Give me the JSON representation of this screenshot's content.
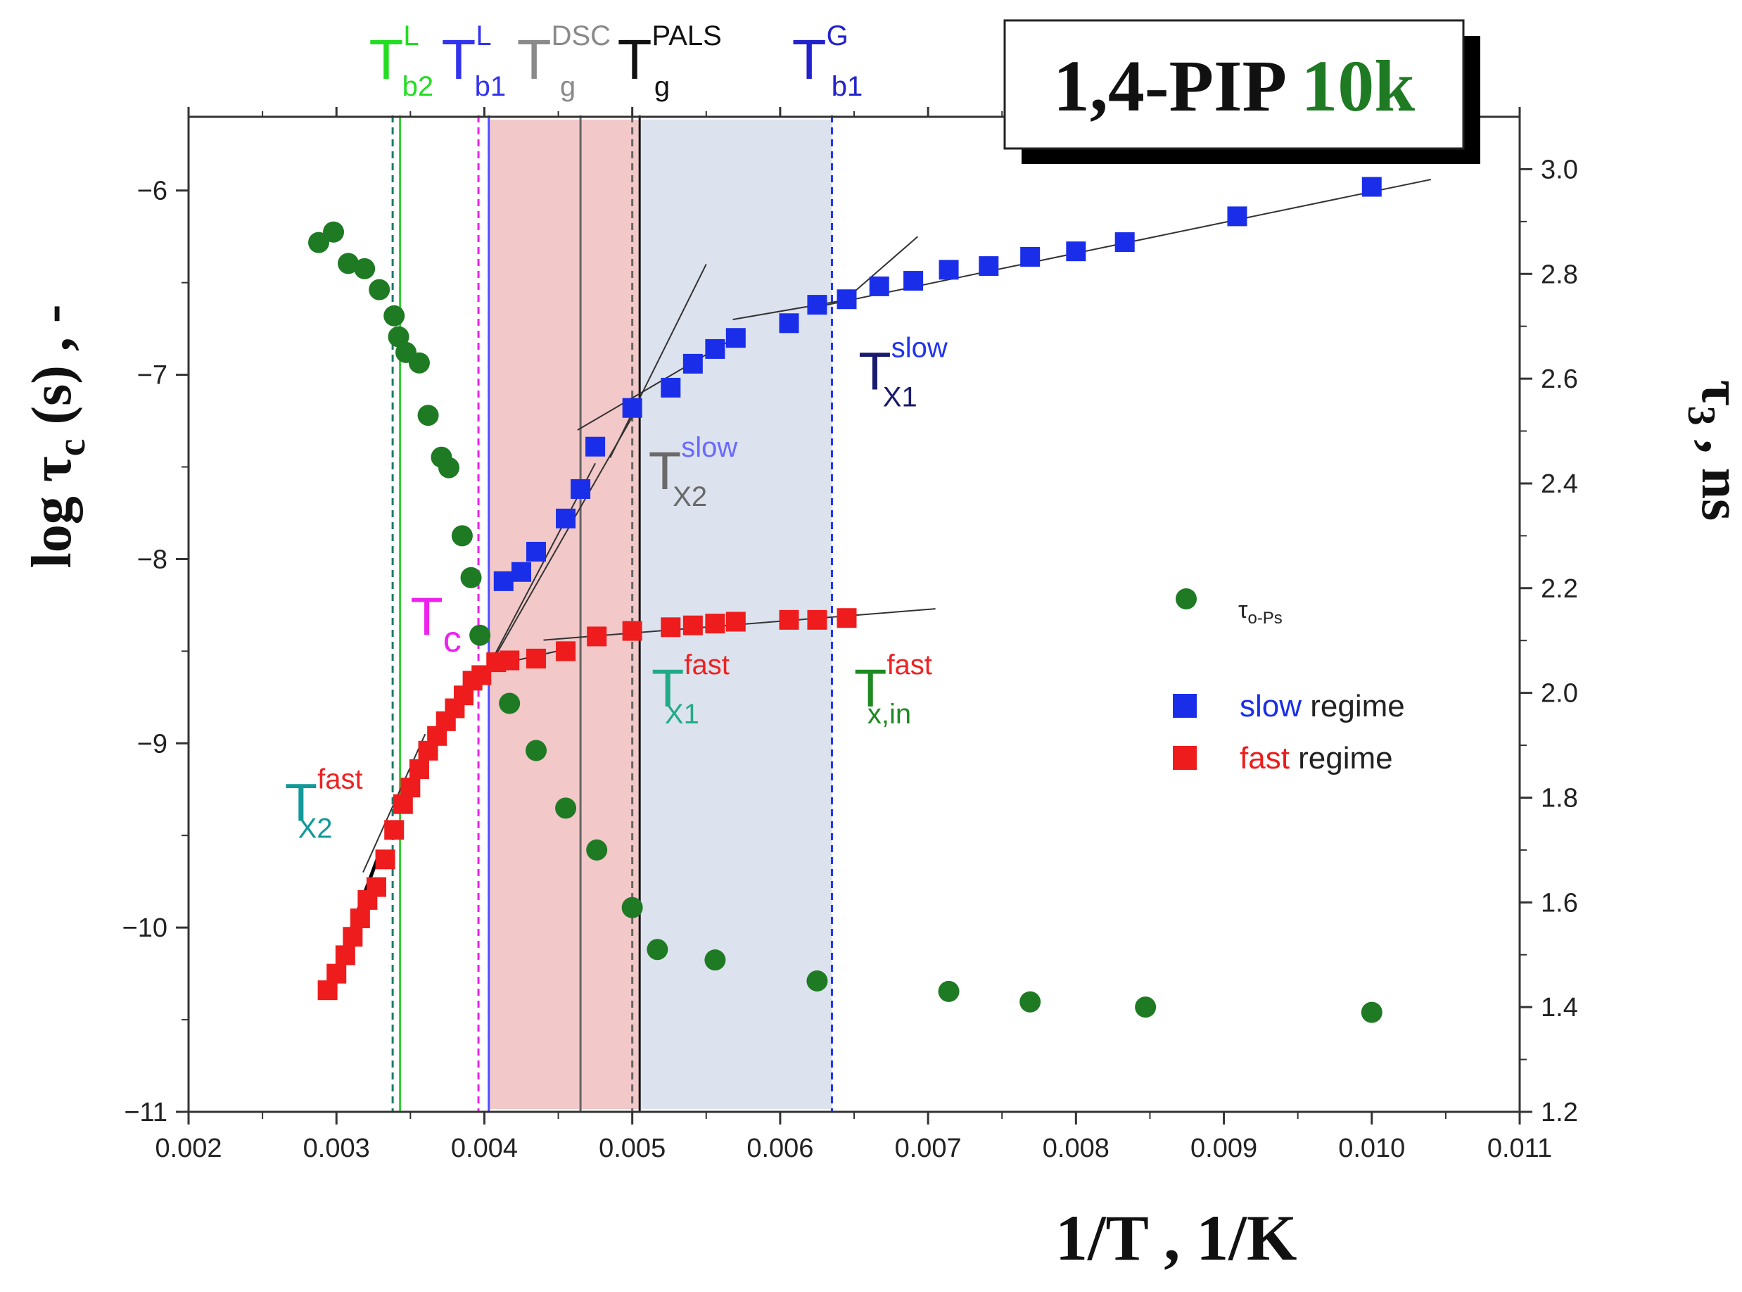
{
  "chart_data": {
    "type": "scatter",
    "title": "1,4-PIP",
    "title_suffix": "10k",
    "xlabel": "1/T , 1/K",
    "ylabel": "log τc (s) , -",
    "y2label": "τ3 , ns",
    "xlim": [
      0.002,
      0.011
    ],
    "ylim": [
      -11,
      -5.6
    ],
    "y2lim": [
      1.2,
      3.1
    ],
    "x_ticks": [
      "0.002",
      "0.003",
      "0.004",
      "0.005",
      "0.006",
      "0.007",
      "0.008",
      "0.009",
      "0.010",
      "0.011"
    ],
    "y_ticks": [
      "−11",
      "−10",
      "−9",
      "−8",
      "−7",
      "−6"
    ],
    "y2_ticks": [
      "1.2",
      "1.4",
      "1.6",
      "1.8",
      "2.0",
      "2.2",
      "2.4",
      "2.6",
      "2.8",
      "3.0"
    ],
    "series": [
      {
        "name": "slow regime",
        "name_colored": "slow",
        "name_rest": " regime",
        "axis": "left",
        "color": "#1a2eea",
        "marker": "square",
        "x": [
          0.00413,
          0.00425,
          0.00435,
          0.00455,
          0.00465,
          0.00475,
          0.005,
          0.00526,
          0.00541,
          0.00556,
          0.0057,
          0.00606,
          0.00625,
          0.00645,
          0.00667,
          0.0069,
          0.00714,
          0.00741,
          0.00769,
          0.008,
          0.00833,
          0.00909,
          0.01
        ],
        "y": [
          -8.12,
          -8.07,
          -7.96,
          -7.78,
          -7.62,
          -7.39,
          -7.18,
          -7.07,
          -6.94,
          -6.86,
          -6.8,
          -6.72,
          -6.62,
          -6.59,
          -6.52,
          -6.49,
          -6.43,
          -6.41,
          -6.36,
          -6.33,
          -6.28,
          -6.14,
          -5.98
        ]
      },
      {
        "name": "fast regime",
        "name_colored": "fast",
        "name_rest": " regime",
        "axis": "left",
        "color": "#ee1c1c",
        "marker": "square",
        "x": [
          0.00294,
          0.003,
          0.00306,
          0.00311,
          0.00316,
          0.00321,
          0.00327,
          0.00333,
          0.00339,
          0.00345,
          0.0035,
          0.00356,
          0.00362,
          0.00368,
          0.00374,
          0.0038,
          0.00386,
          0.00392,
          0.00398,
          0.00408,
          0.00417,
          0.00435,
          0.00455,
          0.00476,
          0.005,
          0.00526,
          0.00541,
          0.00556,
          0.0057,
          0.00606,
          0.00625,
          0.00645
        ],
        "y": [
          -10.34,
          -10.25,
          -10.15,
          -10.05,
          -9.95,
          -9.85,
          -9.78,
          -9.63,
          -9.47,
          -9.33,
          -9.24,
          -9.14,
          -9.04,
          -8.96,
          -8.88,
          -8.81,
          -8.74,
          -8.66,
          -8.63,
          -8.56,
          -8.55,
          -8.54,
          -8.5,
          -8.42,
          -8.39,
          -8.37,
          -8.36,
          -8.35,
          -8.34,
          -8.33,
          -8.33,
          -8.32
        ]
      },
      {
        "name": "τo-Ps",
        "name_main": "τ",
        "name_sub": "o-Ps",
        "axis": "right",
        "color": "#1e7a23",
        "marker": "circle",
        "x": [
          0.00288,
          0.00298,
          0.00308,
          0.00319,
          0.00329,
          0.00339,
          0.00342,
          0.00347,
          0.00356,
          0.00362,
          0.00371,
          0.00376,
          0.00385,
          0.00391,
          0.00397,
          0.00417,
          0.00435,
          0.00455,
          0.00476,
          0.005,
          0.00517,
          0.00556,
          0.00625,
          0.00714,
          0.00769,
          0.00847,
          0.01
        ],
        "y": [
          2.86,
          2.88,
          2.82,
          2.81,
          2.77,
          2.72,
          2.68,
          2.65,
          2.63,
          2.53,
          2.45,
          2.43,
          2.3,
          2.22,
          2.11,
          1.98,
          1.89,
          1.78,
          1.7,
          1.59,
          1.51,
          1.49,
          1.45,
          1.43,
          1.41,
          1.4,
          1.39
        ]
      }
    ],
    "fit_lines": [
      {
        "x": [
          0.00294,
          0.00328
        ],
        "y": [
          -10.35,
          -9.62
        ]
      },
      {
        "x": [
          0.00318,
          0.0036
        ],
        "y": [
          -9.7,
          -8.95
        ]
      },
      {
        "x": [
          0.00345,
          0.00398
        ],
        "y": [
          -9.3,
          -8.6
        ]
      },
      {
        "x": [
          0.00405,
          0.00475
        ],
        "y": [
          -8.55,
          -7.48
        ]
      },
      {
        "x": [
          0.00405,
          0.00502
        ],
        "y": [
          -8.56,
          -7.2
        ]
      },
      {
        "x": [
          0.00463,
          0.00565
        ],
        "y": [
          -7.3,
          -6.82
        ]
      },
      {
        "x": [
          0.00485,
          0.0055
        ],
        "y": [
          -7.45,
          -6.4
        ]
      },
      {
        "x": [
          0.00568,
          0.0064
        ],
        "y": [
          -6.7,
          -6.6
        ]
      },
      {
        "x": [
          0.0064,
          0.00693
        ],
        "y": [
          -6.62,
          -6.25
        ]
      },
      {
        "x": [
          0.0062,
          0.0104
        ],
        "y": [
          -6.64,
          -5.94
        ]
      },
      {
        "x": [
          0.00405,
          0.0046
        ],
        "y": [
          -8.58,
          -8.48
        ]
      },
      {
        "x": [
          0.0044,
          0.00705
        ],
        "y": [
          -8.44,
          -8.27
        ]
      }
    ],
    "vertical_lines": [
      {
        "name": "T_b2_L",
        "x": 0.00338,
        "color": "#1a7a6a",
        "style": "dashed"
      },
      {
        "name": "T_b2_L_solid",
        "x": 0.00343,
        "color": "#33cc33",
        "style": "solid"
      },
      {
        "name": "T_c",
        "x": 0.00396,
        "color": "#ee22ee",
        "style": "dashed"
      },
      {
        "name": "T_b1_L",
        "x": 0.00403,
        "color": "#4d4dff",
        "style": "solid"
      },
      {
        "name": "T_X2_slow",
        "x": 0.00465,
        "color": "#666666",
        "style": "solid"
      },
      {
        "name": "T_g_DSC",
        "x": 0.005,
        "color": "#666666",
        "style": "dashed"
      },
      {
        "name": "T_g_PALS",
        "x": 0.00505,
        "color": "#111111",
        "style": "solid"
      },
      {
        "name": "T_b1_G",
        "x": 0.00635,
        "color": "#2233ff",
        "style": "dashed"
      }
    ],
    "shaded_regions": [
      {
        "x": [
          0.00403,
          0.00505
        ],
        "color": "#f2c8c8"
      },
      {
        "x": [
          0.00505,
          0.00635
        ],
        "color": "#dde3ee"
      }
    ],
    "top_labels": [
      {
        "main": "T",
        "sup": "L",
        "sub": "b2",
        "color": "#22dd22",
        "sup_color": "#22dd22",
        "sub_color": "#22dd22",
        "x": 0.00322
      },
      {
        "main": "T",
        "sup": "L",
        "sub": "b1",
        "color": "#3333ee",
        "sup_color": "#3333ee",
        "sub_color": "#3333ee",
        "x": 0.00371
      },
      {
        "main": "T",
        "sup": "DSC",
        "sub": "g",
        "color": "#8a8a8a",
        "sup_color": "#8a8a8a",
        "sub_color": "#8a8a8a",
        "x": 0.00422
      },
      {
        "main": "T",
        "sup": "PALS",
        "sub": "g",
        "color": "#111111",
        "sup_color": "#111111",
        "sub_color": "#111111",
        "x": 0.0049
      },
      {
        "main": "T",
        "sup": "G",
        "sub": "b1",
        "color": "#2222cc",
        "sup_color": "#2222cc",
        "sub_color": "#2222cc",
        "x": 0.00608
      }
    ],
    "annotations": [
      {
        "main": "T",
        "sup": "slow",
        "sub": "X1",
        "color": "#1a1a6e",
        "sup_color": "#2233ee",
        "sub_color": "#1a1a6e",
        "x": 0.00653,
        "y": -7.08
      },
      {
        "main": "T",
        "sup": "slow",
        "sub": "X2",
        "color": "#6a6a6a",
        "sup_color": "#6a6aff",
        "sub_color": "#6a6a6a",
        "x": 0.00511,
        "y": -7.62
      },
      {
        "main": "T",
        "sup": "",
        "sub": "c",
        "color": "#ee22ee",
        "sup_color": "#ee22ee",
        "sub_color": "#ee22ee",
        "x": 0.0035,
        "y": -8.41
      },
      {
        "main": "T",
        "sup": "fast",
        "sub": "X1",
        "color": "#22aa88",
        "sup_color": "#ee2222",
        "sub_color": "#22aa88",
        "x": 0.00513,
        "y": -8.8
      },
      {
        "main": "T",
        "sup": "fast",
        "sub": "x,in",
        "color": "#1e8a23",
        "sup_color": "#ee2222",
        "sub_color": "#1e8a23",
        "x": 0.0065,
        "y": -8.8
      },
      {
        "main": "T",
        "sup": "fast",
        "sub": "X2",
        "color": "#129999",
        "sup_color": "#ee2222",
        "sub_color": "#129999",
        "x": 0.00265,
        "y": -9.42
      }
    ],
    "legend_position": "right-middle"
  }
}
